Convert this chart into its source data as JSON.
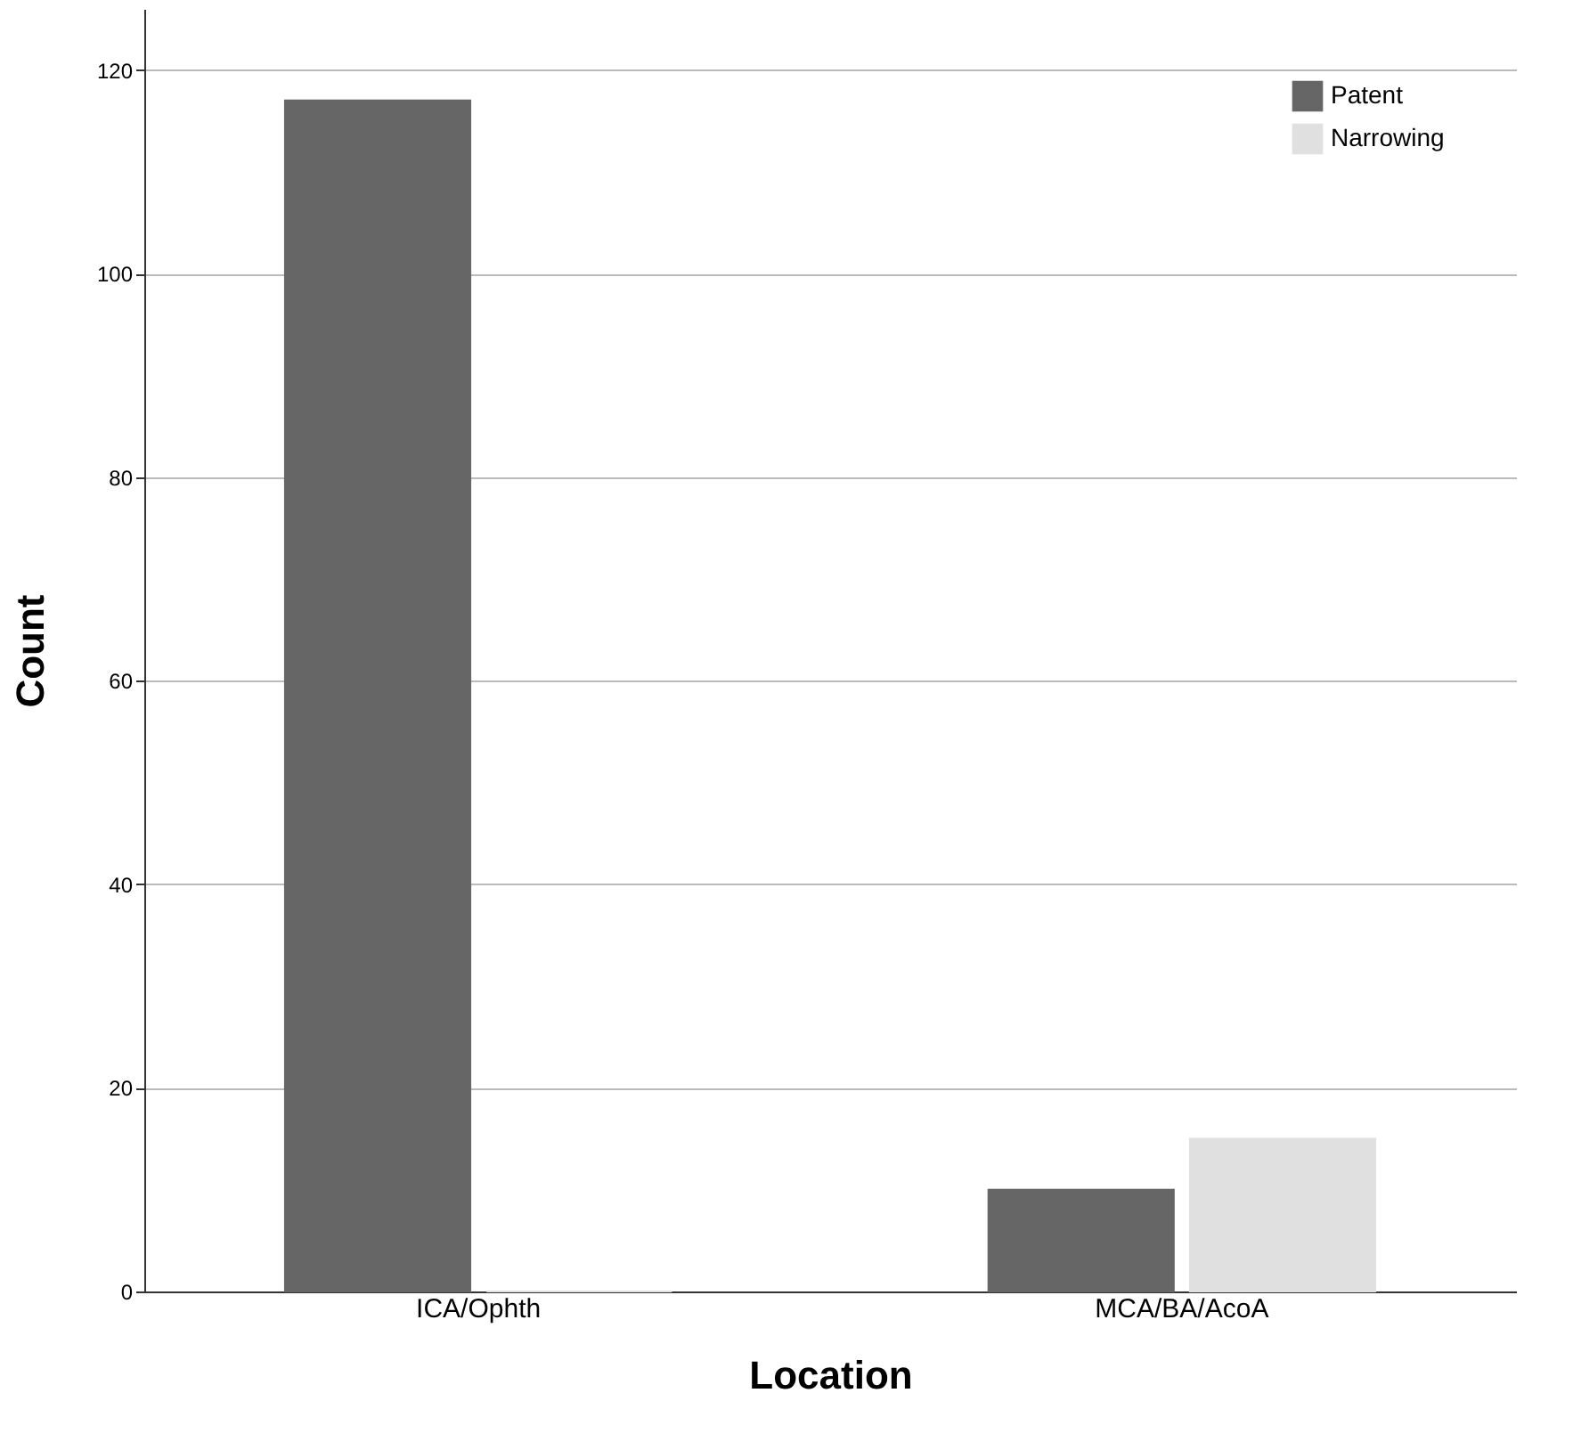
{
  "chart_data": {
    "type": "bar",
    "xlabel": "Location",
    "ylabel": "Count",
    "categories": [
      "ICA/Ophth",
      "MCA/BA/AcoA"
    ],
    "series": [
      {
        "name": "Patent",
        "color": "#666666",
        "values": [
          117,
          10
        ]
      },
      {
        "name": "Narrowing",
        "color": "#e0e0e0",
        "values": [
          0,
          15
        ]
      }
    ],
    "ylim": [
      0,
      126
    ],
    "yticks": [
      0,
      20,
      40,
      60,
      80,
      100,
      120
    ],
    "grid": "y",
    "legend": "top right"
  }
}
